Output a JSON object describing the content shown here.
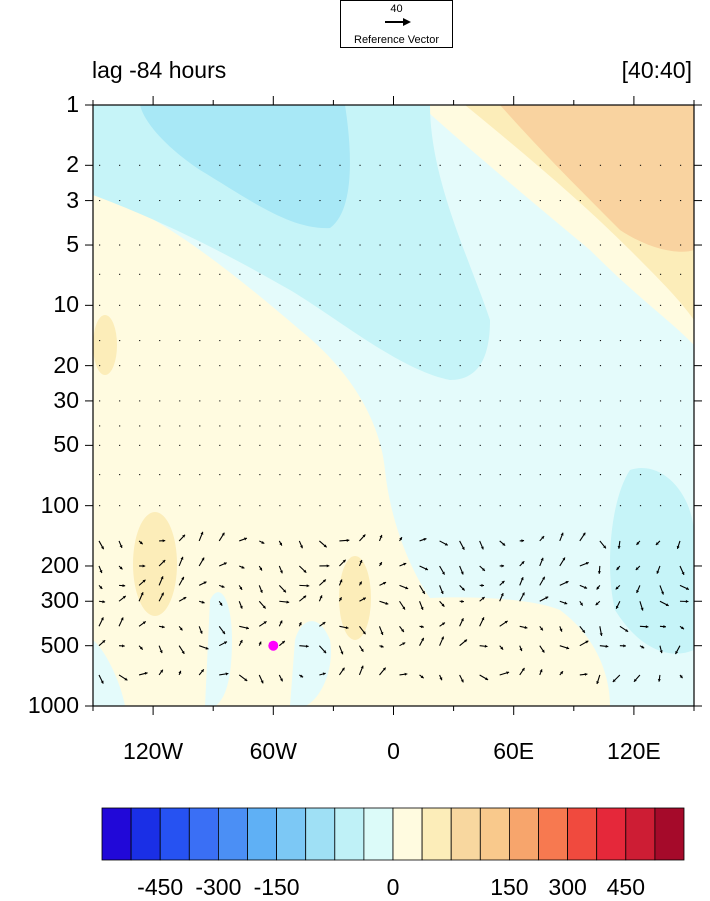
{
  "chart_data": {
    "type": "contour-vector",
    "title_left": "lag -84 hours",
    "title_right": "[40:40]",
    "reference_vector": {
      "magnitude": "40",
      "label": "Reference Vector"
    },
    "x_axis": {
      "range": [
        -150,
        150
      ],
      "ticks": [
        -120,
        -60,
        0,
        60,
        120
      ],
      "tick_labels": [
        "120W",
        "60W",
        "0",
        "60E",
        "120E"
      ]
    },
    "y_axis": {
      "scale": "log",
      "reversed": true,
      "range": [
        1,
        1000
      ],
      "ticks": [
        1,
        2,
        3,
        5,
        10,
        20,
        30,
        50,
        100,
        200,
        300,
        500,
        1000
      ],
      "tick_labels": [
        "1",
        "2",
        "3",
        "5",
        "10",
        "20",
        "30",
        "50",
        "100",
        "200",
        "300",
        "500",
        "1000"
      ]
    },
    "colorbar": {
      "levels": [
        -525,
        -450,
        -375,
        -300,
        -225,
        -150,
        -75,
        -50,
        -25,
        0,
        25,
        50,
        75,
        150,
        225,
        300,
        375,
        450,
        525
      ],
      "colors": [
        "#2108d8",
        "#1a2fe6",
        "#2652f2",
        "#3a6ff5",
        "#4b8ff5",
        "#5fb0f5",
        "#7cc8f5",
        "#9fe0f5",
        "#bff1f7",
        "#dcfbf9",
        "#fffbe0",
        "#fcedb9",
        "#f8d79f",
        "#f9c98c",
        "#f7a56c",
        "#f77950",
        "#f04a3e",
        "#e5283a",
        "#cd1d34",
        "#a50a2a"
      ],
      "tick_labels": [
        "-450",
        "-300",
        "-150",
        "0",
        "150",
        "300",
        "450"
      ]
    },
    "marker": {
      "lon": -60,
      "lev": 500,
      "color": "#ff00ff"
    }
  }
}
